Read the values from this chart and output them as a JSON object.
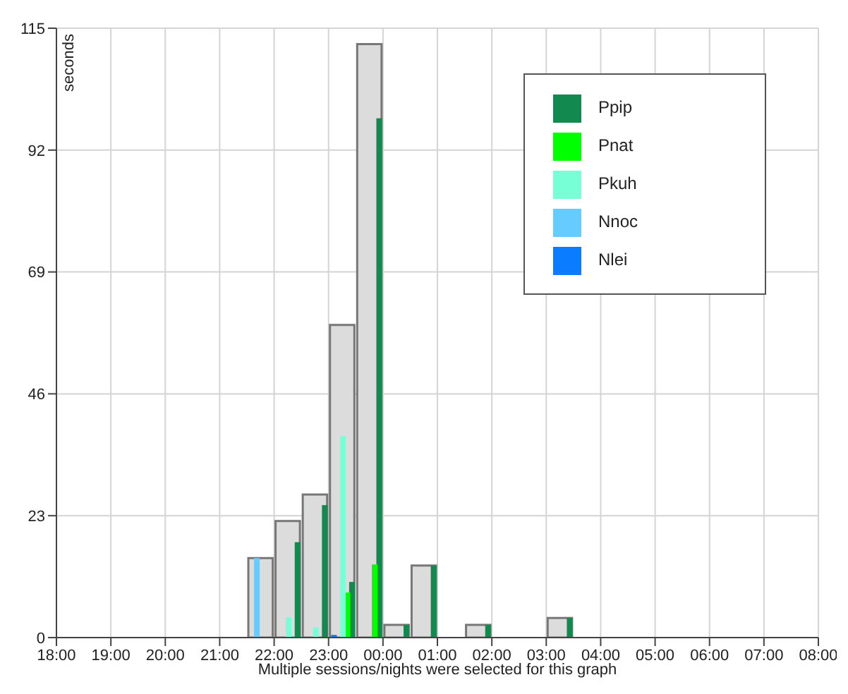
{
  "chart_data": {
    "type": "bar",
    "xlabel": "Multiple sessions/nights were selected for this graph",
    "ylabel": "seconds",
    "x": [
      "2000-01-01T21:45",
      "2000-01-01T22:15",
      "2000-01-01T22:45",
      "2000-01-01T23:15",
      "2000-01-01T23:45",
      "2000-01-02T00:15",
      "2000-01-02T00:45",
      "2000-01-02T01:45",
      "2000-01-02T03:15"
    ],
    "series": [
      {
        "color": "#dcdcdc",
        "values": [
          15,
          22,
          27,
          59,
          112,
          2.4,
          13.6,
          2.4,
          3.7
        ]
      },
      {
        "name": "Ppip",
        "color": "#128a4f",
        "values": [
          null,
          18,
          25,
          10.5,
          98,
          2.4,
          13.6,
          2.4,
          3.7
        ]
      },
      {
        "name": "Pnat",
        "color": "#00ff00",
        "values": [
          null,
          null,
          null,
          8.5,
          13.8,
          null,
          null,
          null,
          null
        ]
      },
      {
        "name": "Pkuh",
        "color": "#77ffd6",
        "values": [
          null,
          3.8,
          1.9,
          38,
          null,
          null,
          null,
          null,
          null
        ]
      },
      {
        "name": "Nnoc",
        "color": "#66ccff",
        "values": [
          15,
          null,
          null,
          null,
          null,
          null,
          null,
          null,
          null
        ]
      },
      {
        "name": "Nlei",
        "color": "#0a7cff",
        "values": [
          null,
          null,
          null,
          0.5,
          null,
          null,
          null,
          null,
          null
        ]
      }
    ],
    "xlim": [
      "2000-01-01T18:00",
      "2000-01-02T08:00"
    ],
    "xticks": [
      {
        "value": "2000-01-01T18:00",
        "label": "18:00"
      },
      {
        "value": "2000-01-01T19:00",
        "label": "19:00"
      },
      {
        "value": "2000-01-01T20:00",
        "label": "20:00"
      },
      {
        "value": "2000-01-01T21:00",
        "label": "21:00"
      },
      {
        "value": "2000-01-01T22:00",
        "label": "22:00"
      },
      {
        "value": "2000-01-01T23:00",
        "label": "23:00"
      },
      {
        "value": "2000-01-02T00:00",
        "label": "00:00"
      },
      {
        "value": "2000-01-02T01:00",
        "label": "01:00"
      },
      {
        "value": "2000-01-02T02:00",
        "label": "02:00"
      },
      {
        "value": "2000-01-02T03:00",
        "label": "03:00"
      },
      {
        "value": "2000-01-02T04:00",
        "label": "04:00"
      },
      {
        "value": "2000-01-02T05:00",
        "label": "05:00"
      },
      {
        "value": "2000-01-02T06:00",
        "label": "06:00"
      },
      {
        "value": "2000-01-02T07:00",
        "label": "07:00"
      },
      {
        "value": "2000-01-02T08:00",
        "label": "08:00"
      }
    ],
    "ylim": [
      0,
      115
    ],
    "yticks": [
      0,
      23,
      46,
      69,
      92,
      115
    ],
    "grid": true,
    "legend": "top right"
  }
}
